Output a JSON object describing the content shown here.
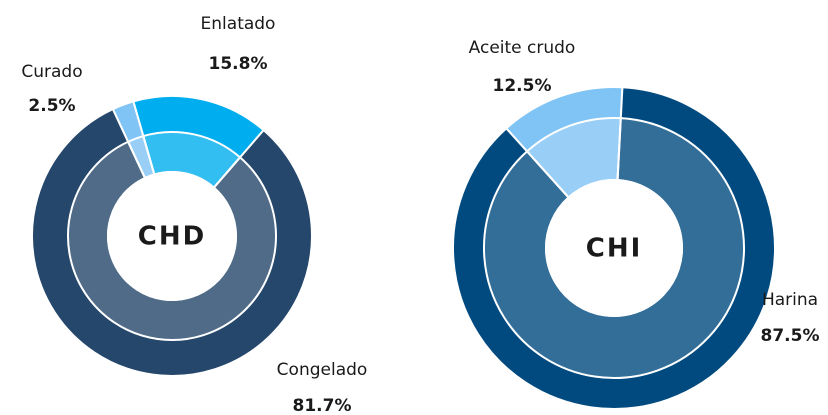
{
  "chart_data": [
    {
      "type": "donut",
      "title": "CHD",
      "categories": [
        "Curado",
        "Enlatado",
        "Congelado"
      ],
      "values": [
        2.5,
        15.8,
        81.7
      ],
      "value_labels": [
        "2.5%",
        "15.8%",
        "81.7%"
      ],
      "colors": [
        "#80c4f5",
        "#00aeef",
        "#24476b"
      ]
    },
    {
      "type": "donut",
      "title": "CHI",
      "categories": [
        "Aceite crudo",
        "Harina"
      ],
      "values": [
        12.5,
        87.5
      ],
      "value_labels": [
        "12.5%",
        "87.5%"
      ],
      "colors": [
        "#80c4f5",
        "#004a80"
      ]
    }
  ]
}
